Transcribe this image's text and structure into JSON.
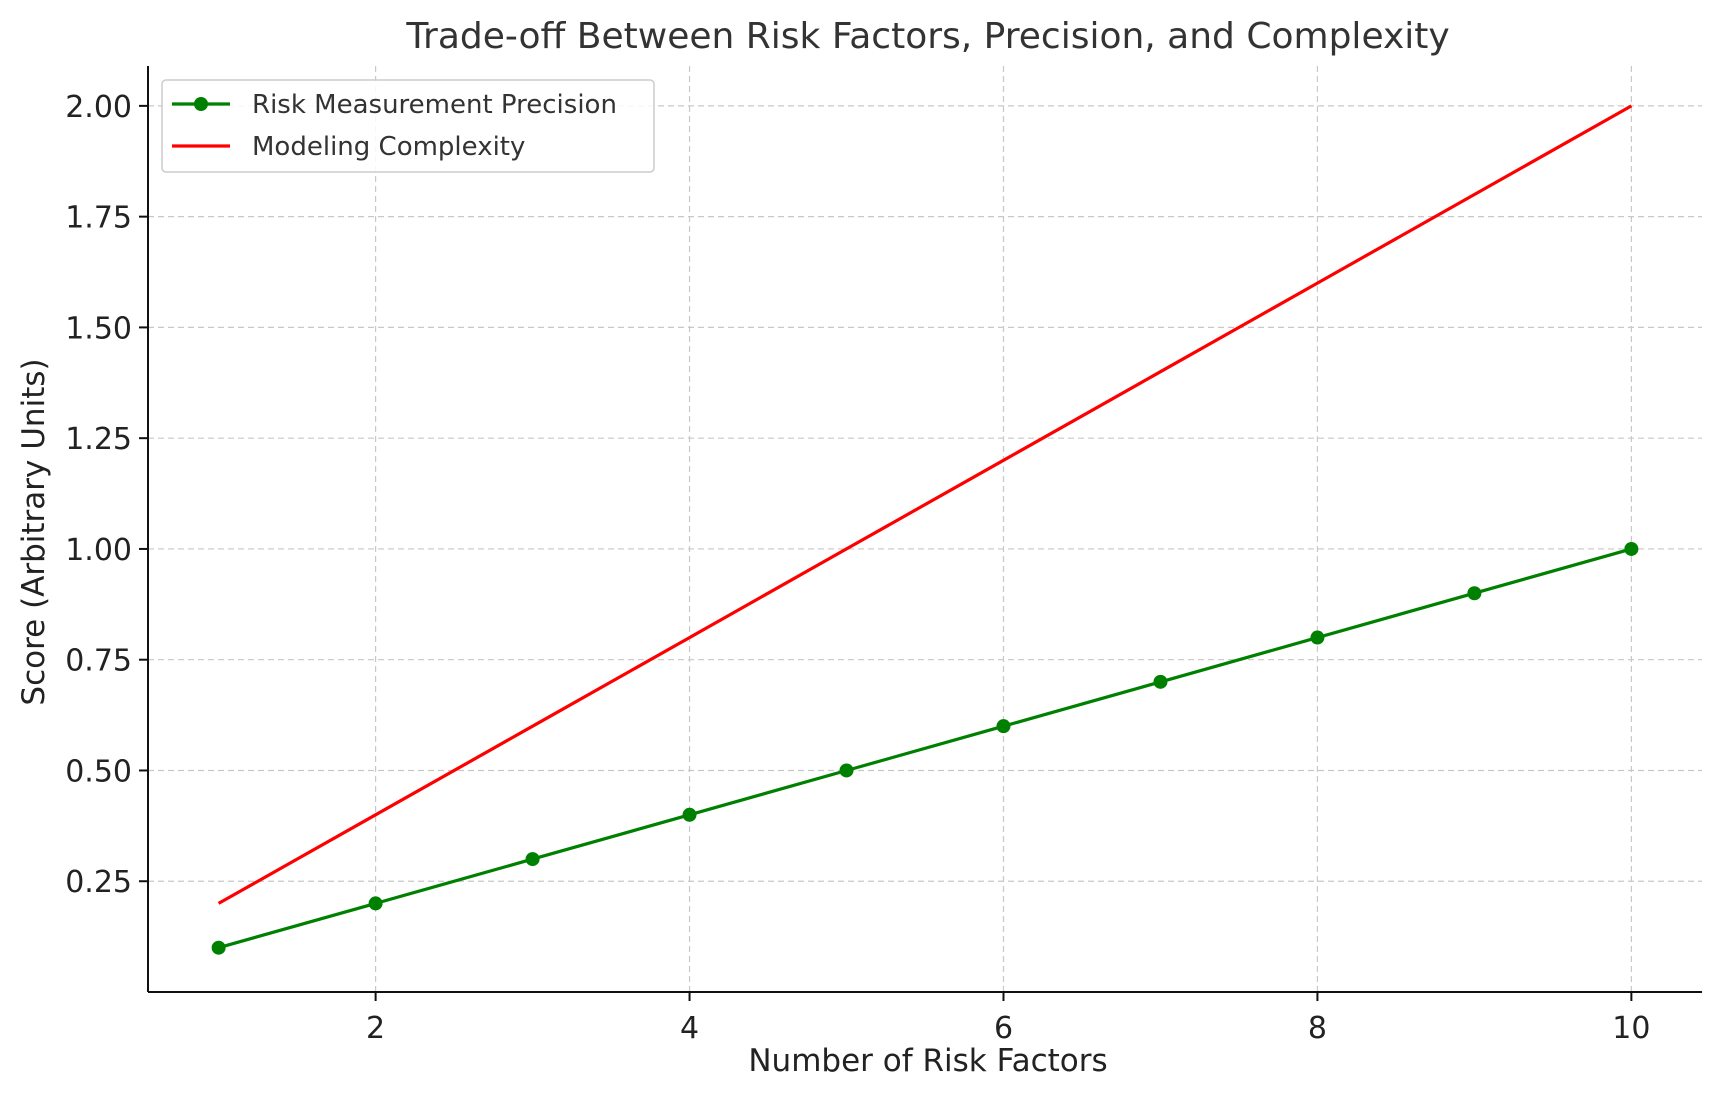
{
  "chart_data": {
    "type": "line",
    "title": "Trade-off Between Risk Factors, Precision, and Complexity",
    "xlabel": "Number of Risk Factors",
    "ylabel": "Score (Arbitrary Units)",
    "xlim": [
      0.55,
      10.45
    ],
    "ylim": [
      -0.0,
      2.09
    ],
    "xticks": [
      2,
      4,
      6,
      8,
      10
    ],
    "yticks": [
      0.25,
      0.5,
      0.75,
      1.0,
      1.25,
      1.5,
      1.75,
      2.0
    ],
    "xtick_labels": [
      "2",
      "4",
      "6",
      "8",
      "10"
    ],
    "ytick_labels": [
      "0.25",
      "0.50",
      "0.75",
      "1.00",
      "1.25",
      "1.50",
      "1.75",
      "2.00"
    ],
    "grid": true,
    "legend_position": "top-left",
    "x": [
      1,
      2,
      3,
      4,
      5,
      6,
      7,
      8,
      9,
      10
    ],
    "series": [
      {
        "name": "Risk Measurement Precision",
        "values": [
          0.1,
          0.2,
          0.3,
          0.4,
          0.5,
          0.6,
          0.7,
          0.8,
          0.9,
          1.0
        ],
        "color": "#008000",
        "marker": "circle"
      },
      {
        "name": "Modeling Complexity",
        "values": [
          0.2,
          0.4,
          0.6,
          0.8,
          1.0,
          1.2,
          1.4,
          1.6,
          1.8,
          2.0
        ],
        "color": "#ff0000",
        "marker": "none"
      }
    ]
  }
}
